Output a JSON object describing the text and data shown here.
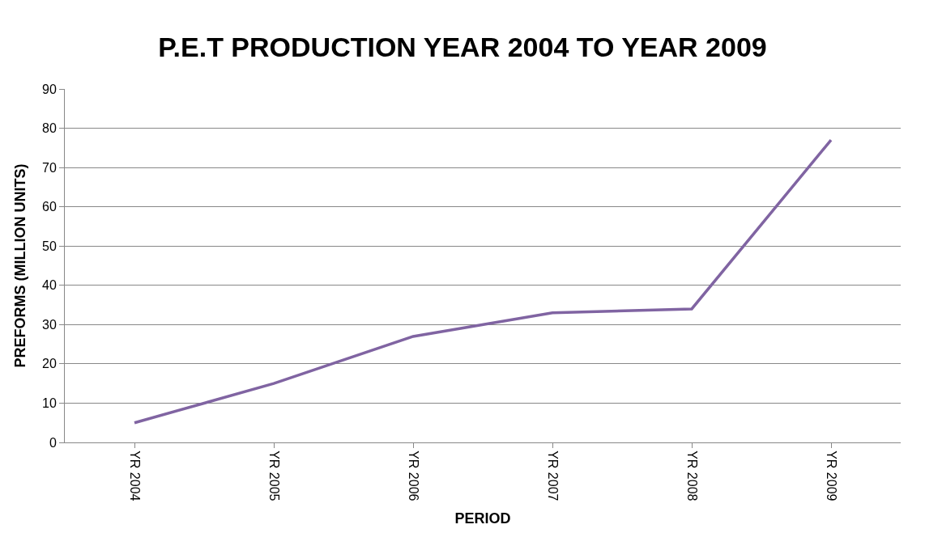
{
  "chart_data": {
    "type": "line",
    "title": "P.E.T PRODUCTION YEAR 2004 TO YEAR 2009",
    "xlabel": "PERIOD",
    "ylabel": "PREFORMS (MILLION UNITS)",
    "categories": [
      "YR 2004",
      "YR 2005",
      "YR 2006",
      "YR 2007",
      "YR 2008",
      "YR 2009"
    ],
    "series": [
      {
        "color": "#8064a2",
        "values": [
          5,
          15,
          27,
          33,
          34,
          77
        ]
      }
    ],
    "ylim": [
      0,
      90
    ],
    "yticks": [
      0,
      10,
      20,
      30,
      40,
      50,
      60,
      70,
      80,
      90
    ],
    "grid": "y",
    "marker": "none",
    "line_style": "solid"
  }
}
